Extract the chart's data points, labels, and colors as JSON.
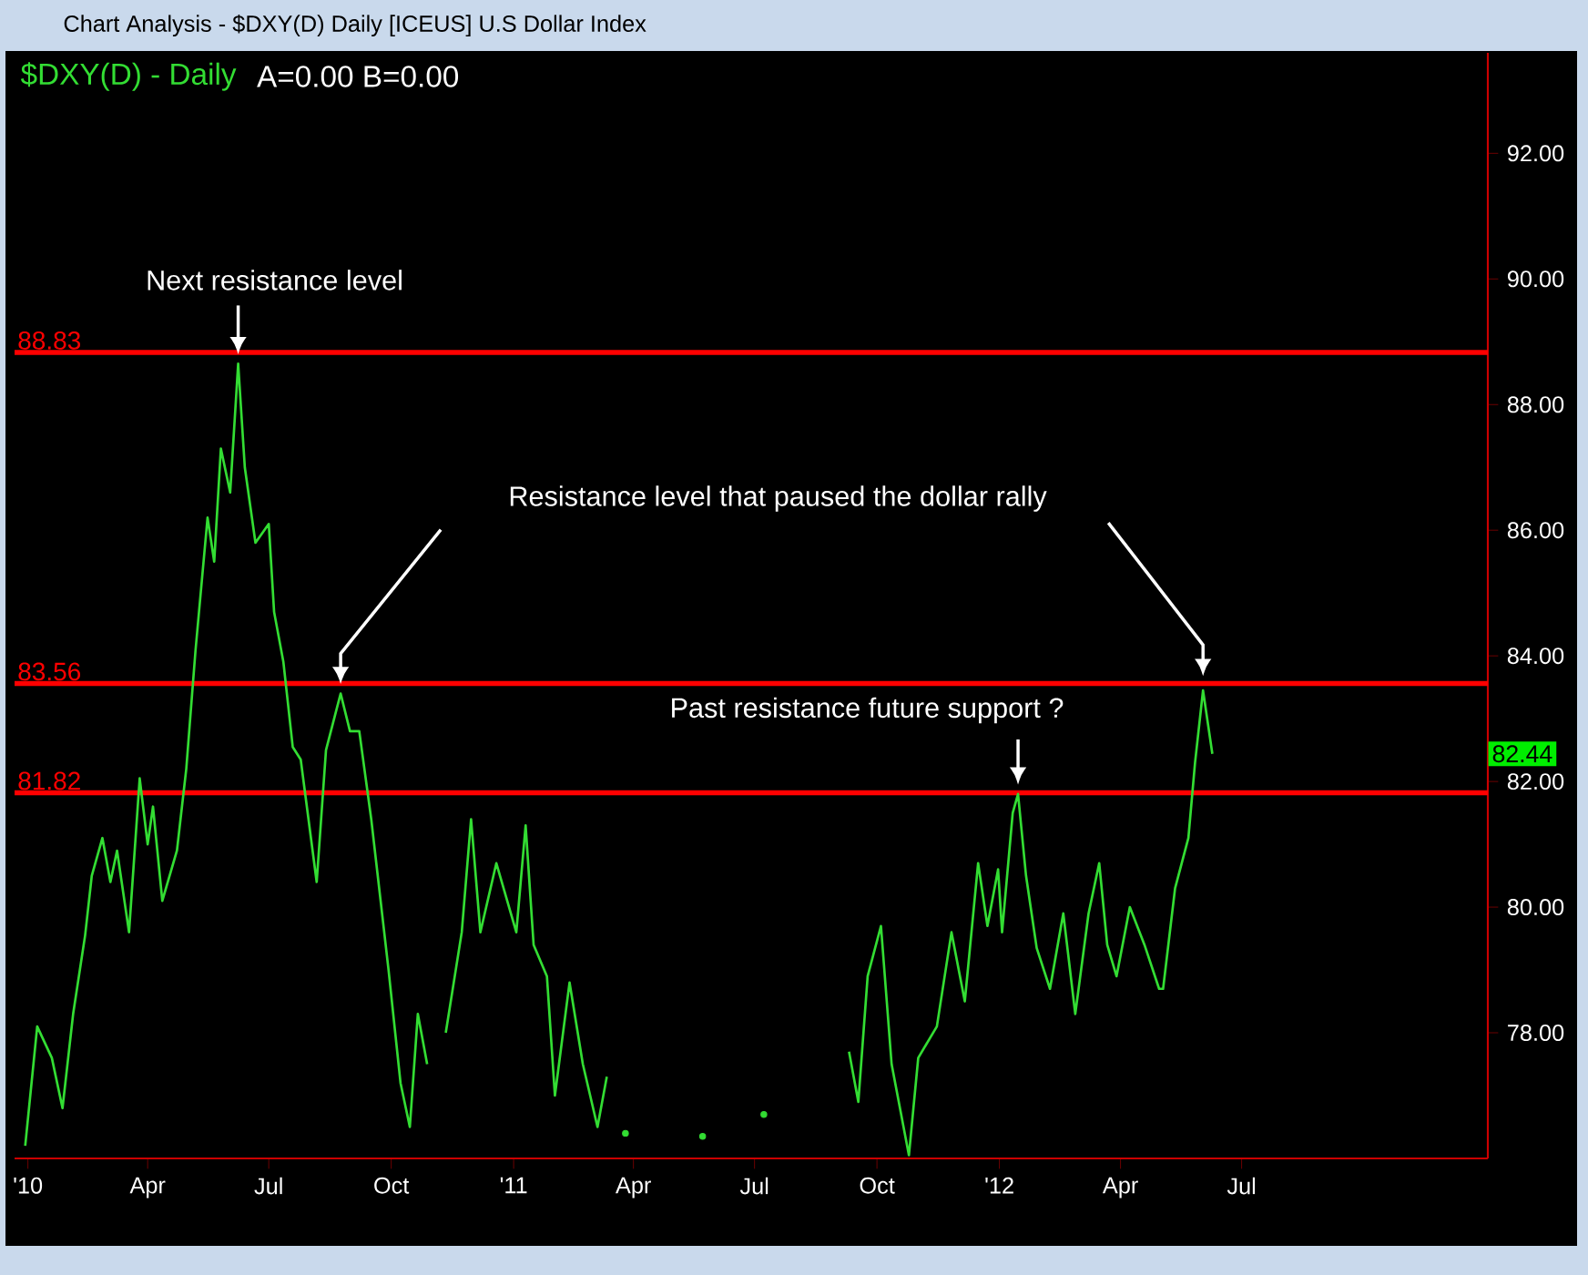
{
  "chart_data": {
    "type": "line",
    "title": "$DXY(D) - Daily",
    "subtitle": "A=0.00  B=0.00",
    "x": [
      "2009-12-30",
      "2010-01-08",
      "2010-01-19",
      "2010-01-27",
      "2010-02-04",
      "2010-02-13",
      "2010-02-18",
      "2010-02-26",
      "2010-03-04",
      "2010-03-09",
      "2010-03-18",
      "2010-03-26",
      "2010-04-01",
      "2010-04-05",
      "2010-04-12",
      "2010-04-23",
      "2010-04-30",
      "2010-05-07",
      "2010-05-16",
      "2010-05-21",
      "2010-05-26",
      "2010-06-02",
      "2010-06-08",
      "2010-06-13",
      "2010-06-21",
      "2010-07-01",
      "2010-07-05",
      "2010-07-12",
      "2010-07-19",
      "2010-07-25",
      "2010-08-06",
      "2010-08-13",
      "2010-08-24",
      "2010-08-31",
      "2010-09-07",
      "2010-09-16",
      "2010-09-29",
      "2010-10-08",
      "2010-10-15",
      "2010-10-21",
      "2010-10-28",
      "2010-11-04",
      "2010-11-11",
      "2010-11-23",
      "2010-11-30",
      "2010-12-07",
      "2010-12-19",
      "2011-01-03",
      "2011-01-10",
      "2011-01-16",
      "2011-01-26",
      "2011-02-01",
      "2011-02-12",
      "2011-02-22",
      "2011-03-05",
      "2011-03-12",
      "2011-03-19",
      "2011-03-26",
      "2011-04-01",
      "2011-05-23",
      "2011-06-01",
      "2011-07-08",
      "2011-09-05",
      "2011-09-10",
      "2011-09-17",
      "2011-09-24",
      "2011-10-04",
      "2011-10-12",
      "2011-10-25",
      "2011-11-01",
      "2011-11-15",
      "2011-11-26",
      "2011-12-06",
      "2011-12-16",
      "2011-12-23",
      "2011-12-31",
      "2012-01-03",
      "2012-01-11",
      "2012-01-15",
      "2012-01-21",
      "2012-01-29",
      "2012-02-08",
      "2012-02-18",
      "2012-02-27",
      "2012-03-08",
      "2012-03-16",
      "2012-03-22",
      "2012-03-29",
      "2012-04-08",
      "2012-04-19",
      "2012-04-30",
      "2012-05-03",
      "2012-05-12",
      "2012-05-22",
      "2012-05-27",
      "2012-06-02",
      "2012-06-09"
    ],
    "series": [
      {
        "color": "#33dd33",
        "values": [
          76.2,
          78.1,
          77.6,
          76.8,
          78.3,
          79.55,
          80.5,
          81.1,
          80.4,
          80.9,
          79.6,
          82.05,
          81.0,
          81.6,
          80.1,
          80.9,
          82.2,
          84.1,
          86.2,
          85.5,
          87.3,
          86.6,
          88.65,
          87.0,
          85.8,
          86.1,
          84.7,
          83.9,
          82.55,
          82.35,
          80.4,
          82.5,
          83.4,
          82.8,
          82.8,
          81.4,
          79.0,
          77.2,
          76.5,
          78.3,
          77.5,
          null,
          78.0,
          79.6,
          81.4,
          79.6,
          80.7,
          79.6,
          81.3,
          79.4,
          78.9,
          77.0,
          78.8,
          77.5,
          76.5,
          77.3,
          null,
          76.4,
          null,
          76.35,
          null,
          76.7,
          null,
          77.7,
          76.9,
          78.9,
          79.7,
          77.5,
          76.05,
          77.6,
          78.1,
          79.6,
          78.5,
          80.7,
          79.7,
          80.6,
          79.6,
          81.5,
          81.8,
          80.5,
          79.35,
          78.7,
          79.9,
          78.3,
          79.9,
          80.7,
          79.4,
          78.9,
          80.0,
          79.4,
          78.7,
          78.7,
          80.3,
          81.1,
          82.3,
          83.45,
          82.44
        ]
      }
    ],
    "xlim": [
      "2009-12-22",
      "2013-01-02"
    ],
    "xticks": [
      {
        "value": "2010-01-01",
        "label": "'10"
      },
      {
        "value": "2010-04-01",
        "label": "Apr"
      },
      {
        "value": "2010-07-01",
        "label": "Jul"
      },
      {
        "value": "2010-10-01",
        "label": "Oct"
      },
      {
        "value": "2011-01-01",
        "label": "'11"
      },
      {
        "value": "2011-04-01",
        "label": "Apr"
      },
      {
        "value": "2011-07-01",
        "label": "Jul"
      },
      {
        "value": "2011-10-01",
        "label": "Oct"
      },
      {
        "value": "2012-01-01",
        "label": "'12"
      },
      {
        "value": "2012-04-01",
        "label": "Apr"
      },
      {
        "value": "2012-07-01",
        "label": "Jul"
      }
    ],
    "ylim": [
      76,
      93.6
    ],
    "yticks": [
      {
        "value": 78,
        "label": "78.00"
      },
      {
        "value": 80,
        "label": "80.00"
      },
      {
        "value": 82,
        "label": "82.00"
      },
      {
        "value": 84,
        "label": "84.00"
      },
      {
        "value": 86,
        "label": "86.00"
      },
      {
        "value": 88,
        "label": "88.00"
      },
      {
        "value": 90,
        "label": "90.00"
      },
      {
        "value": 92,
        "label": "92.00"
      }
    ],
    "ref_lines": [
      {
        "axis": "y",
        "value": 88.83,
        "label": "88.83",
        "color": "#ff0000"
      },
      {
        "axis": "y",
        "value": 83.56,
        "label": "83.56",
        "color": "#ff0000"
      },
      {
        "axis": "y",
        "value": 81.82,
        "label": "81.82",
        "color": "#ff0000"
      }
    ],
    "annotations": [
      "Chart Analysis - $DXY(D) Daily [ICEUS] U.S Dollar Index",
      {
        "text": "Next resistance level",
        "x": "2010-06-08",
        "y": 88.65
      },
      "Resistance level that paused the dollar rally",
      {
        "text": "Past resistance future support ?",
        "x": "2012-01-15",
        "y": 81.8
      },
      {
        "text": "82.44",
        "y": 82.44
      }
    ]
  }
}
